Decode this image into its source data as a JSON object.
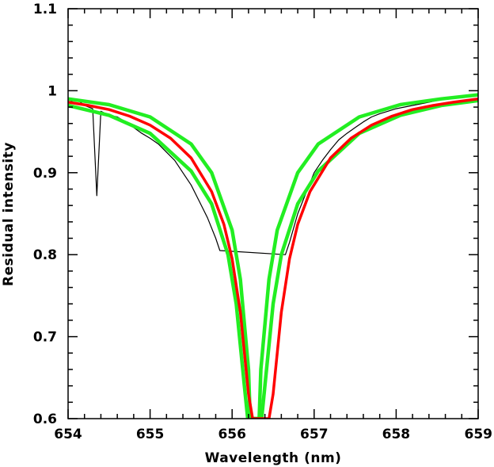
{
  "chart_data": {
    "type": "line",
    "title": "",
    "xlabel": "Wavelength (nm)",
    "ylabel": "Residual intensity",
    "xlim": [
      654,
      659
    ],
    "ylim": [
      0.6,
      1.1
    ],
    "x_ticks": [
      654,
      655,
      656,
      657,
      658,
      659
    ],
    "x_tick_labels": [
      "654",
      "655",
      "656",
      "657",
      "658",
      "659"
    ],
    "y_ticks": [
      0.6,
      0.7,
      0.8,
      0.9,
      1.0,
      1.1
    ],
    "y_tick_labels": [
      "0.6",
      "0.7",
      "0.8",
      "0.9",
      "1",
      "1.1"
    ],
    "grid": false,
    "colors": {
      "observed": "#000000",
      "best_fit": "#ff0000",
      "bounds": "#22ee22"
    },
    "series": [
      {
        "role": "observed",
        "x": [
          654.0,
          654.1,
          654.2,
          654.3,
          654.35,
          654.4,
          654.5,
          654.6,
          654.7,
          654.8,
          654.9,
          655.0,
          655.1,
          655.2,
          655.3,
          655.4,
          655.5,
          655.6,
          655.7,
          655.8,
          655.85,
          656.65,
          656.7,
          656.8,
          656.9,
          657.0,
          657.1,
          657.2,
          657.3,
          657.4,
          657.5,
          657.6,
          657.7,
          657.8,
          657.9,
          658.0,
          658.2,
          658.4,
          658.6,
          658.8,
          659.0
        ],
        "y": [
          0.985,
          0.99,
          0.982,
          0.978,
          0.872,
          0.975,
          0.97,
          0.968,
          0.962,
          0.955,
          0.948,
          0.942,
          0.935,
          0.925,
          0.915,
          0.9,
          0.885,
          0.865,
          0.845,
          0.82,
          0.805,
          0.8,
          0.815,
          0.85,
          0.875,
          0.9,
          0.915,
          0.928,
          0.94,
          0.948,
          0.955,
          0.962,
          0.968,
          0.972,
          0.975,
          0.978,
          0.982,
          0.986,
          0.99,
          0.993,
          0.996
        ]
      },
      {
        "role": "best_fit",
        "x": [
          654.0,
          654.25,
          654.5,
          654.75,
          655.0,
          655.25,
          655.5,
          655.75,
          655.9,
          656.0,
          656.1,
          656.2,
          656.25,
          656.45,
          656.5,
          656.6,
          656.7,
          656.8,
          656.95,
          657.2,
          657.45,
          657.7,
          657.95,
          658.2,
          658.45,
          658.7,
          659.0
        ],
        "y": [
          0.986,
          0.982,
          0.977,
          0.969,
          0.958,
          0.942,
          0.918,
          0.877,
          0.837,
          0.795,
          0.73,
          0.63,
          0.6,
          0.6,
          0.63,
          0.73,
          0.795,
          0.837,
          0.877,
          0.918,
          0.942,
          0.958,
          0.969,
          0.977,
          0.982,
          0.986,
          0.99
        ]
      },
      {
        "role": "upper_bound",
        "x": [
          654.0,
          654.5,
          655.0,
          655.5,
          655.75,
          656.0,
          656.1,
          656.2,
          656.22,
          656.33,
          656.35,
          656.45,
          656.55,
          656.8,
          657.05,
          657.55,
          658.05,
          658.55,
          659.0
        ],
        "y": [
          0.99,
          0.983,
          0.968,
          0.935,
          0.9,
          0.83,
          0.77,
          0.66,
          0.6,
          0.6,
          0.66,
          0.77,
          0.83,
          0.9,
          0.935,
          0.968,
          0.983,
          0.99,
          0.995
        ]
      },
      {
        "role": "lower_bound",
        "x": [
          654.0,
          654.5,
          655.0,
          655.5,
          655.75,
          655.95,
          656.05,
          656.15,
          656.19,
          656.36,
          656.4,
          656.5,
          656.6,
          656.8,
          657.05,
          657.55,
          658.05,
          658.55,
          659.0
        ],
        "y": [
          0.982,
          0.97,
          0.948,
          0.902,
          0.862,
          0.8,
          0.74,
          0.64,
          0.6,
          0.6,
          0.64,
          0.74,
          0.8,
          0.862,
          0.902,
          0.948,
          0.97,
          0.982,
          0.988
        ]
      }
    ]
  }
}
